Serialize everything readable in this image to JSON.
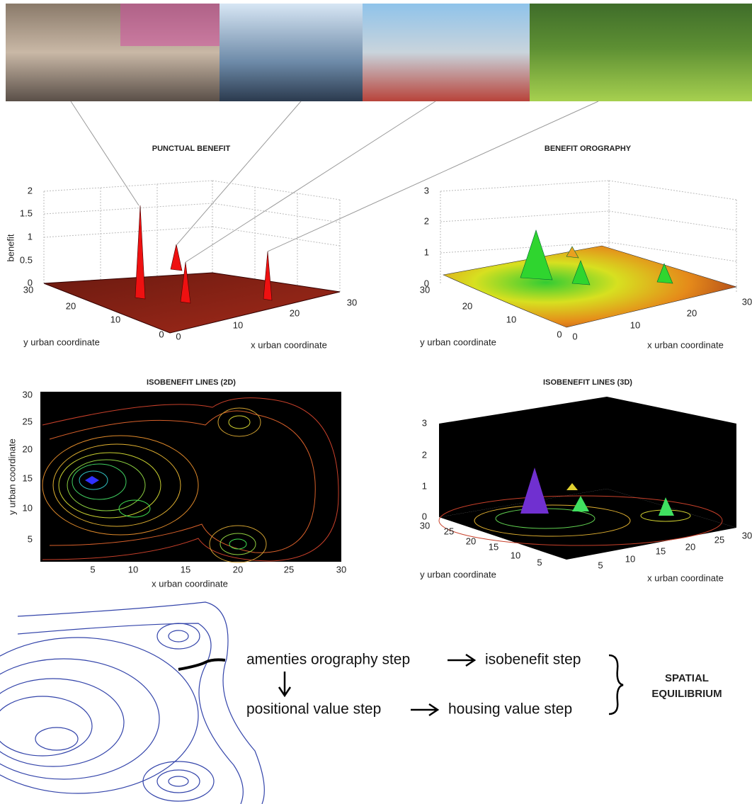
{
  "panels": [
    {
      "title": "PUNCTUAL BENEFIT",
      "z_label": "benefit",
      "z_ticks": [
        0,
        0.5,
        1,
        1.5,
        2
      ],
      "y_label": "y urban coordinate",
      "y_ticks": [
        30,
        20,
        10,
        0
      ],
      "x_label": "x urban coordinate",
      "x_ticks": [
        0,
        10,
        20,
        30
      ]
    },
    {
      "title": "BENEFIT OROGRAPHY",
      "z_ticks": [
        0,
        1,
        2,
        3
      ],
      "y_label": "y urban coordinate",
      "y_ticks": [
        30,
        20,
        10,
        0
      ],
      "x_label": "x urban coordinate",
      "x_ticks": [
        0,
        10,
        20,
        30
      ]
    },
    {
      "title": "ISOBENEFIT LINES (2D)",
      "y_label": "y urban coordinate",
      "y_ticks": [
        30,
        25,
        20,
        15,
        10,
        5
      ],
      "x_label": "x urban coordinate",
      "x_ticks": [
        5,
        10,
        15,
        20,
        25,
        30
      ]
    },
    {
      "title": "ISOBENEFIT LINES (3D)",
      "z_ticks": [
        0,
        1,
        2,
        3
      ],
      "y_label": "y urban coordinate",
      "y_ticks": [
        30,
        25,
        20,
        15,
        10,
        5
      ],
      "x_label": "x urban coordinate",
      "x_ticks": [
        5,
        10,
        15,
        20,
        25,
        30
      ]
    }
  ],
  "flow": {
    "steps": [
      "amenties orography step",
      "isobenefit step",
      "positional value step",
      "housing value step"
    ],
    "result": [
      "SPATIAL",
      "EQUILIBRIUM"
    ]
  }
}
